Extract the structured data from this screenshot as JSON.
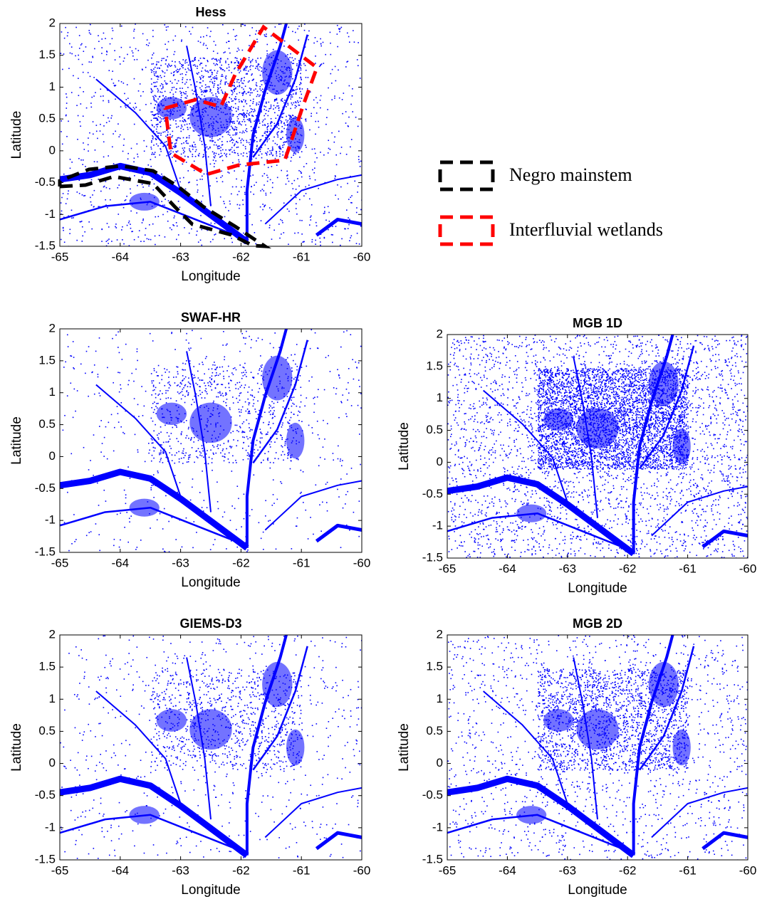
{
  "chart_data": [
    {
      "type": "map",
      "title": "Hess",
      "xlabel": "Longitude",
      "ylabel": "Latitude",
      "color": "#0000ff",
      "xlim": [
        -65,
        -60
      ],
      "ylim": [
        -1.5,
        2
      ],
      "xticks": [
        -65,
        -64,
        -63,
        -62,
        -61,
        -60
      ],
      "yticks": [
        -1.5,
        -1,
        -0.5,
        0,
        0.5,
        1,
        1.5,
        2
      ],
      "legend": [
        {
          "name": "Negro mainstem",
          "color": "#000000"
        },
        {
          "name": "Interfluvial wetlands",
          "color": "#ff0000"
        }
      ]
    },
    {
      "type": "map",
      "title": "SWAF-HR",
      "xlabel": "Longitude",
      "ylabel": "Latitude",
      "color": "#0000ff",
      "xlim": [
        -65,
        -60
      ],
      "ylim": [
        -1.5,
        2
      ],
      "xticks": [
        -65,
        -64,
        -63,
        -62,
        -61,
        -60
      ],
      "yticks": [
        -1.5,
        -1,
        -0.5,
        0,
        0.5,
        1,
        1.5,
        2
      ]
    },
    {
      "type": "map",
      "title": "MGB 1D",
      "xlabel": "Longitude",
      "ylabel": "Latitude",
      "color": "#0000ff",
      "xlim": [
        -65,
        -60
      ],
      "ylim": [
        -1.5,
        2
      ],
      "xticks": [
        -65,
        -64,
        -63,
        -62,
        -61,
        -60
      ],
      "yticks": [
        -1.5,
        -1,
        -0.5,
        0,
        0.5,
        1,
        1.5,
        2
      ]
    },
    {
      "type": "map",
      "title": "GIEMS-D3",
      "xlabel": "Longitude",
      "ylabel": "Latitude",
      "color": "#0000ff",
      "xlim": [
        -65,
        -60
      ],
      "ylim": [
        -1.5,
        2
      ],
      "xticks": [
        -65,
        -64,
        -63,
        -62,
        -61,
        -60
      ],
      "yticks": [
        -1.5,
        -1,
        -0.5,
        0,
        0.5,
        1,
        1.5,
        2
      ]
    },
    {
      "type": "map",
      "title": "MGB 2D",
      "xlabel": "Longitude",
      "ylabel": "Latitude",
      "color": "#0000ff",
      "xlim": [
        -65,
        -60
      ],
      "ylim": [
        -1.5,
        2
      ],
      "xticks": [
        -65,
        -64,
        -63,
        -62,
        -61,
        -60
      ],
      "yticks": [
        -1.5,
        -1,
        -0.5,
        0,
        0.5,
        1,
        1.5,
        2
      ]
    }
  ]
}
